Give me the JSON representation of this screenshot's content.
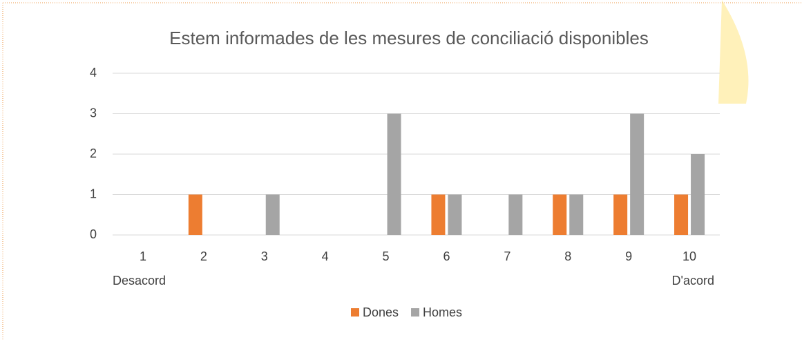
{
  "chart_data": {
    "type": "bar",
    "title": "Estem informades de les mesures de conciliació disponibles",
    "categories": [
      "1",
      "2",
      "3",
      "4",
      "5",
      "6",
      "7",
      "8",
      "9",
      "10"
    ],
    "annotations": [
      "Desacord",
      "D'acord"
    ],
    "series": [
      {
        "name": "Dones",
        "color": "#ed7d31",
        "values": [
          0,
          1,
          0,
          0,
          0,
          1,
          0,
          1,
          1,
          1
        ]
      },
      {
        "name": "Homes",
        "color": "#a5a5a5",
        "values": [
          0,
          0,
          1,
          0,
          3,
          1,
          1,
          1,
          3,
          2
        ]
      }
    ],
    "ylim": [
      0,
      4
    ],
    "yticks": [
      0,
      1,
      2,
      3,
      4
    ],
    "grid": true,
    "legend": "bottom"
  }
}
